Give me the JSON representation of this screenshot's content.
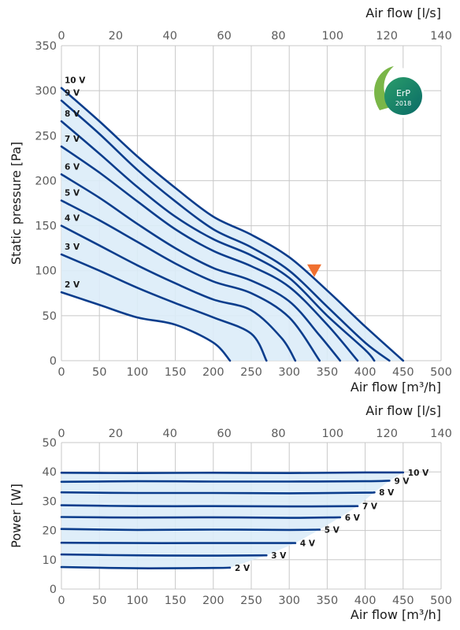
{
  "badge": {
    "line1": "ErP",
    "line2": "2018",
    "colors": [
      "#2a9d6a",
      "#0a6b67"
    ]
  },
  "chart_data": [
    {
      "type": "line",
      "title": "",
      "xlabel_bottom": "Air flow [m³/h]",
      "xlabel_top": "Air flow [l/s]",
      "ylabel": "Static pressure [Pa]",
      "xlim": [
        0,
        500
      ],
      "ylim": [
        0,
        350
      ],
      "xticks_bottom": [
        "0",
        "50",
        "100",
        "150",
        "200",
        "250",
        "300",
        "350",
        "400",
        "450",
        "500"
      ],
      "xticks_top": [
        "0",
        "20",
        "40",
        "60",
        "80",
        "100",
        "120",
        "140"
      ],
      "yticks": [
        "0",
        "50",
        "100",
        "150",
        "200",
        "250",
        "300",
        "350"
      ],
      "grid": true,
      "line_color": "#0b3d8c",
      "fill_color": "#dcecf8",
      "series": [
        {
          "name": "10 V",
          "x": [
            0,
            50,
            100,
            150,
            200,
            250,
            300,
            350,
            400,
            450
          ],
          "y": [
            303,
            266,
            227,
            192,
            160,
            140,
            115,
            78,
            38,
            0
          ]
        },
        {
          "name": "9 V",
          "x": [
            0,
            50,
            100,
            150,
            200,
            250,
            300,
            350,
            400,
            432
          ],
          "y": [
            289,
            252,
            212,
            177,
            146,
            126,
            100,
            60,
            20,
            0
          ]
        },
        {
          "name": "8 V",
          "x": [
            0,
            50,
            100,
            150,
            200,
            250,
            300,
            350,
            400,
            412
          ],
          "y": [
            266,
            230,
            193,
            160,
            135,
            117,
            92,
            50,
            12,
            0
          ]
        },
        {
          "name": "7 V",
          "x": [
            0,
            50,
            100,
            150,
            200,
            250,
            300,
            350,
            390
          ],
          "y": [
            238,
            209,
            177,
            146,
            122,
            105,
            82,
            40,
            0
          ]
        },
        {
          "name": "6 V",
          "x": [
            0,
            50,
            100,
            150,
            200,
            250,
            300,
            340,
            367
          ],
          "y": [
            207,
            181,
            152,
            125,
            103,
            89,
            66,
            28,
            0
          ]
        },
        {
          "name": "5 V",
          "x": [
            0,
            50,
            100,
            150,
            200,
            250,
            300,
            340
          ],
          "y": [
            178,
            156,
            132,
            108,
            88,
            75,
            48,
            0
          ]
        },
        {
          "name": "4 V",
          "x": [
            0,
            50,
            100,
            150,
            200,
            250,
            290,
            308
          ],
          "y": [
            150,
            128,
            106,
            86,
            68,
            56,
            25,
            0
          ]
        },
        {
          "name": "3 V",
          "x": [
            0,
            50,
            100,
            150,
            200,
            250,
            270
          ],
          "y": [
            118,
            100,
            81,
            64,
            48,
            30,
            0
          ]
        },
        {
          "name": "2 V",
          "x": [
            0,
            50,
            100,
            150,
            200,
            222
          ],
          "y": [
            76,
            62,
            48,
            40,
            20,
            0
          ]
        }
      ],
      "marker": {
        "x": 333,
        "y": 100,
        "shape": "triangle-down",
        "color": "#f07030"
      }
    },
    {
      "type": "line",
      "title": "",
      "xlabel_bottom": "Air flow [m³/h]",
      "xlabel_top": "Air flow [l/s]",
      "ylabel": "Power [W]",
      "xlim": [
        0,
        500
      ],
      "ylim": [
        0,
        50
      ],
      "xticks_bottom": [
        "0",
        "50",
        "100",
        "150",
        "200",
        "250",
        "300",
        "350",
        "400",
        "450",
        "500"
      ],
      "xticks_top": [
        "0",
        "20",
        "40",
        "60",
        "80",
        "100",
        "120",
        "140"
      ],
      "yticks": [
        "0",
        "10",
        "20",
        "30",
        "40",
        "50"
      ],
      "grid": true,
      "line_color": "#0b3d8c",
      "fill_color": "#dcecf8",
      "series": [
        {
          "name": "10 V",
          "x": [
            0,
            100,
            200,
            300,
            400,
            450
          ],
          "y": [
            39.7,
            39.6,
            39.7,
            39.6,
            39.8,
            39.8
          ]
        },
        {
          "name": "9 V",
          "x": [
            0,
            100,
            200,
            300,
            400,
            432
          ],
          "y": [
            36.6,
            36.8,
            36.7,
            36.7,
            36.8,
            37.0
          ]
        },
        {
          "name": "8 V",
          "x": [
            0,
            100,
            200,
            300,
            400,
            412
          ],
          "y": [
            33.0,
            32.8,
            32.8,
            32.7,
            32.9,
            33.0
          ]
        },
        {
          "name": "7 V",
          "x": [
            0,
            100,
            200,
            300,
            390
          ],
          "y": [
            28.6,
            28.3,
            28.3,
            28.2,
            28.3
          ]
        },
        {
          "name": "6 V",
          "x": [
            0,
            100,
            200,
            300,
            367
          ],
          "y": [
            24.6,
            24.4,
            24.5,
            24.3,
            24.5
          ]
        },
        {
          "name": "5 V",
          "x": [
            0,
            100,
            200,
            300,
            340
          ],
          "y": [
            20.5,
            20.2,
            20.3,
            20.2,
            20.3
          ]
        },
        {
          "name": "4 V",
          "x": [
            0,
            100,
            200,
            308
          ],
          "y": [
            15.8,
            15.7,
            15.7,
            15.7
          ]
        },
        {
          "name": "3 V",
          "x": [
            0,
            100,
            200,
            270
          ],
          "y": [
            11.8,
            11.5,
            11.4,
            11.5
          ]
        },
        {
          "name": "2 V",
          "x": [
            0,
            100,
            200,
            222
          ],
          "y": [
            7.5,
            7.1,
            7.2,
            7.3
          ]
        }
      ]
    }
  ]
}
